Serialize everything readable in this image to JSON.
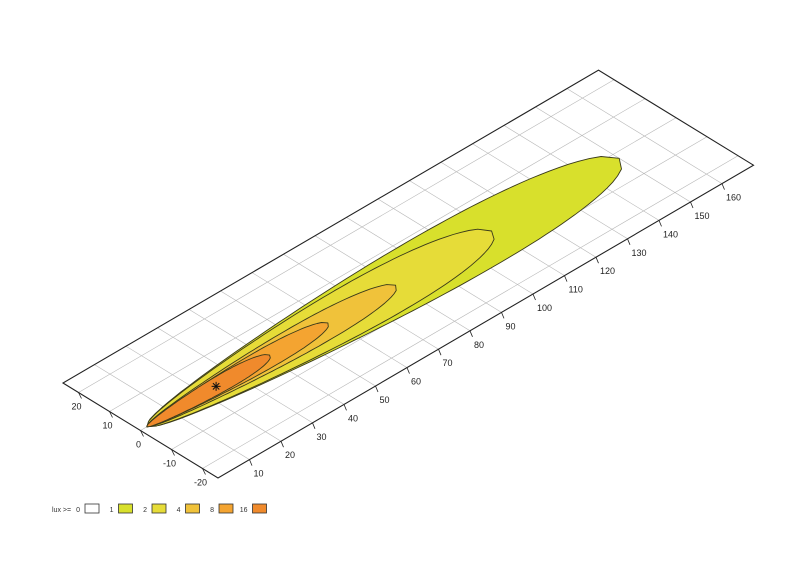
{
  "chart_data": {
    "type": "contour",
    "projection": "isometric ground plane",
    "x_axis": {
      "ticks": [
        10,
        20,
        30,
        40,
        50,
        60,
        70,
        80,
        90,
        100,
        110,
        120,
        130,
        140,
        150,
        160
      ],
      "range": [
        0,
        170
      ],
      "grid_step": 10
    },
    "y_axis": {
      "ticks": [
        20,
        10,
        0,
        -10,
        -20
      ],
      "range": [
        -25,
        25
      ],
      "grid_step": 10
    },
    "grid": true,
    "source": [
      2,
      0
    ],
    "max_marker": [
      24,
      0
    ],
    "legend": {
      "title": "lux >=",
      "placement": "bottom-left",
      "entries": [
        {
          "label": "0",
          "color": "#ffffff"
        },
        {
          "label": "1",
          "color": "#d8e02c"
        },
        {
          "label": "2",
          "color": "#e6dc38"
        },
        {
          "label": "4",
          "color": "#f0c23a"
        },
        {
          "label": "8",
          "color": "#f4a431"
        },
        {
          "label": "16",
          "color": "#f08a2c"
        }
      ]
    },
    "contours": [
      {
        "lux": 1,
        "reach": 150,
        "half_width": 15,
        "center_offset": -2,
        "color": "#d8e02c"
      },
      {
        "lux": 2,
        "reach": 110,
        "half_width": 12,
        "center_offset": -1.5,
        "color": "#e6dc38"
      },
      {
        "lux": 4,
        "reach": 80,
        "half_width": 7,
        "center_offset": -1,
        "color": "#f0c23a"
      },
      {
        "lux": 8,
        "reach": 59,
        "half_width": 5,
        "center_offset": -0.5,
        "color": "#f4a431"
      },
      {
        "lux": 16,
        "reach": 41,
        "half_width": 4,
        "center_offset": 0,
        "color": "#f08a2c"
      }
    ]
  }
}
